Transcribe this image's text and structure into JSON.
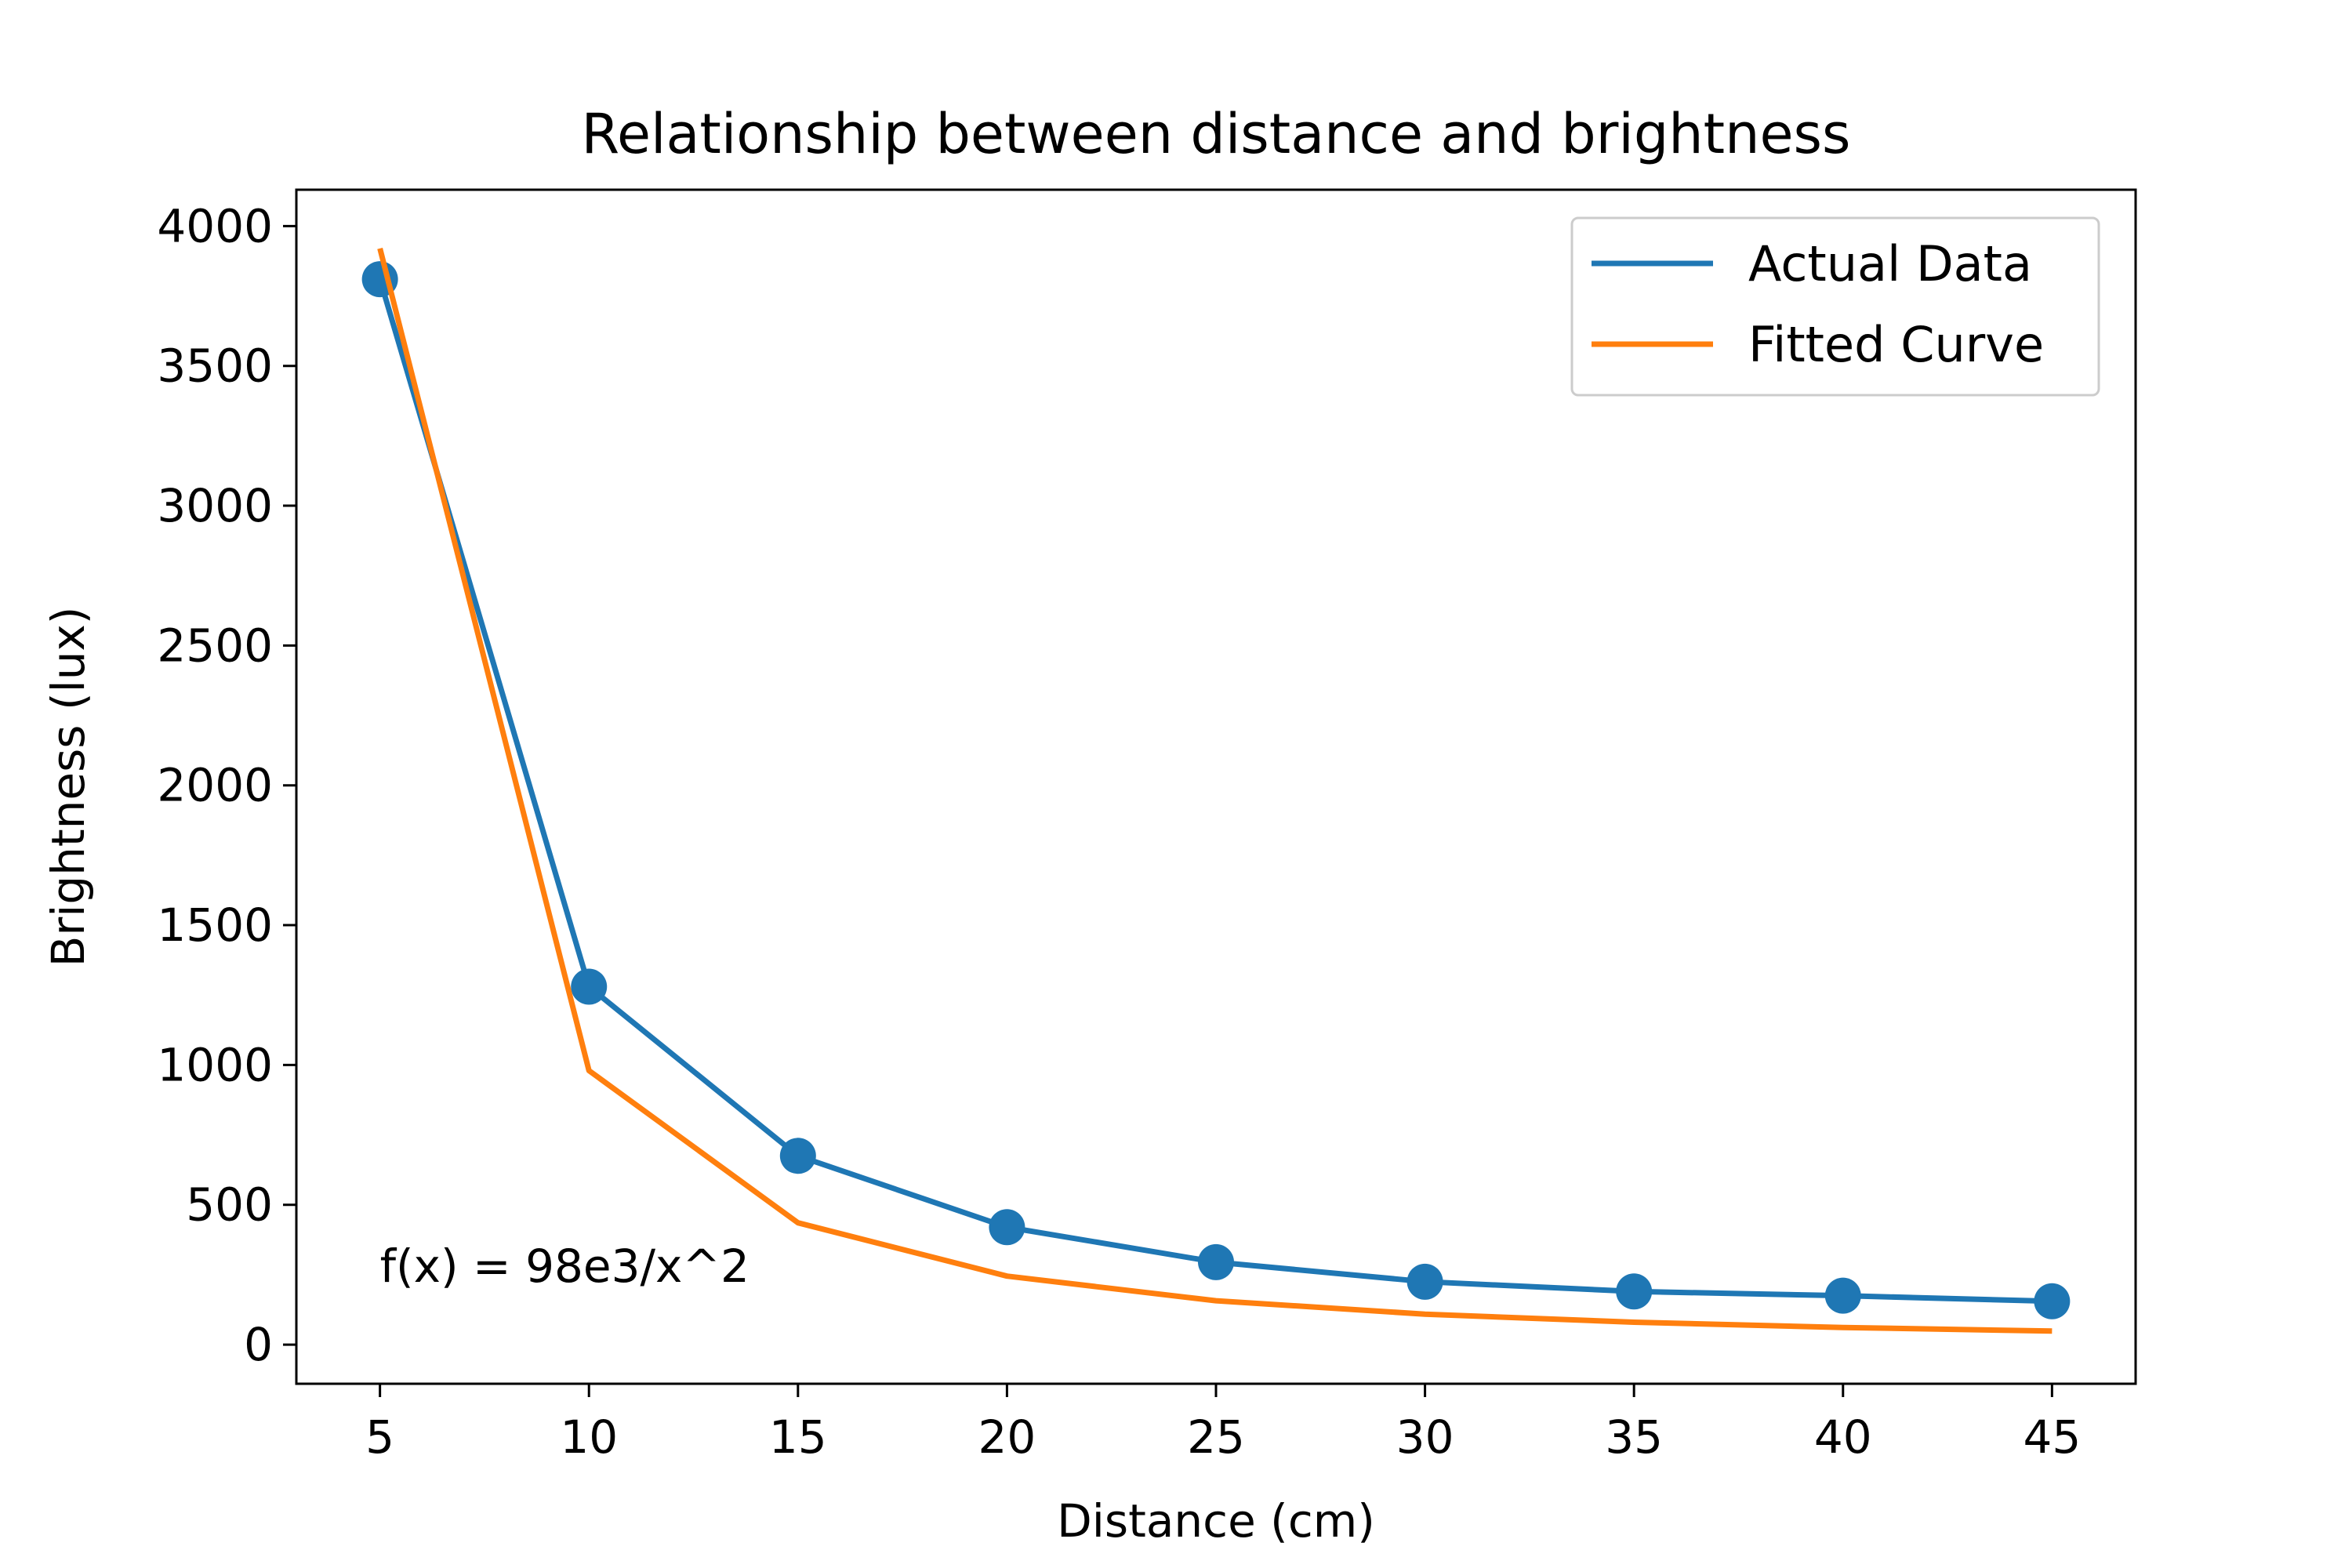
{
  "chart_data": {
    "type": "line",
    "title": "Relationship between distance and brightness",
    "xlabel": "Distance (cm)",
    "ylabel": "Brightness (lux)",
    "x": [
      5,
      10,
      15,
      20,
      25,
      30,
      35,
      40,
      45
    ],
    "xlim": [
      3,
      47
    ],
    "ylim": [
      -140,
      4130
    ],
    "xticks": [
      5,
      10,
      15,
      20,
      25,
      30,
      35,
      40,
      45
    ],
    "yticks": [
      0,
      500,
      1000,
      1500,
      2000,
      2500,
      3000,
      3500,
      4000
    ],
    "grid": false,
    "legend_position": "top-right",
    "series": [
      {
        "name": "Actual Data",
        "color": "#1f77b4",
        "markers": true,
        "values": [
          3810,
          1280,
          675,
          420,
          295,
          225,
          190,
          175,
          155
        ]
      },
      {
        "name": "Fitted Curve",
        "color": "#ff7f0e",
        "markers": false,
        "values": [
          3920,
          980,
          435.6,
          245,
          156.8,
          108.9,
          80,
          61.25,
          48.4
        ]
      }
    ],
    "annotations": [
      {
        "text": "f(x) = 98e3/x^2",
        "x": 5,
        "y": 280
      }
    ]
  }
}
